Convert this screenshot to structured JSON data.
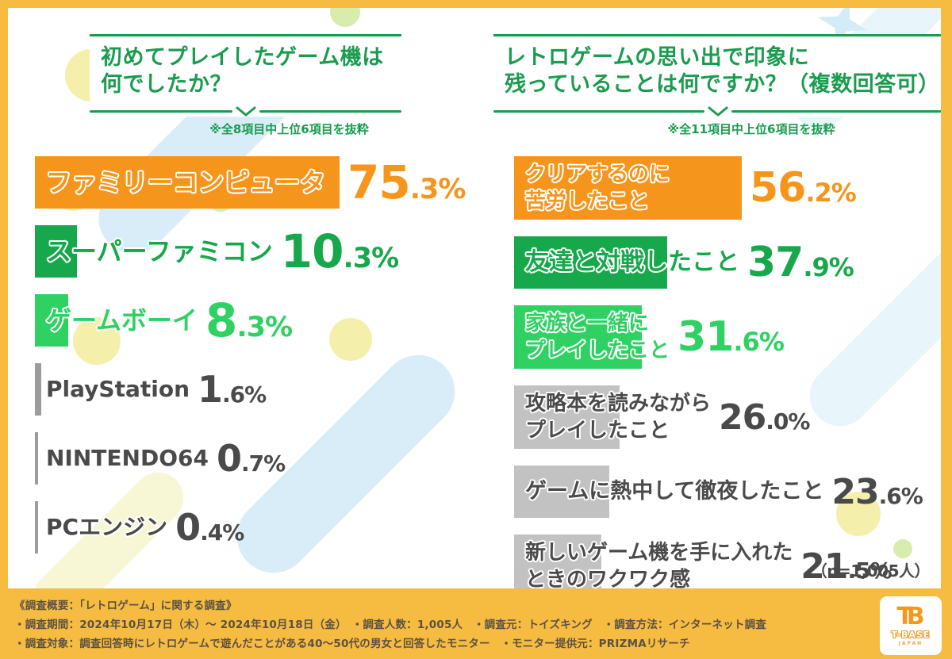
{
  "chart_data": [
    {
      "type": "bar",
      "title_lines": [
        "初めてプレイしたゲーム機は",
        "何でしたか？"
      ],
      "note": "※全8項目中上位6項目を抜粋",
      "unit": "%",
      "categories": [
        "ファミリーコンピュータ",
        "スーパーファミコン",
        "ゲームボーイ",
        "PlayStation",
        "NINTENDO64",
        "PCエンジン"
      ],
      "values": [
        75.3,
        10.3,
        8.3,
        1.6,
        0.7,
        0.4
      ],
      "items": [
        {
          "label_lines": [
            "ファミリーコンピュータ"
          ],
          "value": 75.3,
          "pct_int": "75",
          "pct_frac": ".3%",
          "bar_color": "#F6951C",
          "text_color": "#F6951C",
          "muted": false
        },
        {
          "label_lines": [
            "スーパーファミコン"
          ],
          "value": 10.3,
          "pct_int": "10",
          "pct_frac": ".3%",
          "bar_color": "#17A84B",
          "text_color": "#17A84B",
          "muted": false
        },
        {
          "label_lines": [
            "ゲームボーイ"
          ],
          "value": 8.3,
          "pct_int": "8",
          "pct_frac": ".3%",
          "bar_color": "#2ED162",
          "text_color": "#2ED162",
          "muted": false
        },
        {
          "label_lines": [
            "PlayStation"
          ],
          "value": 1.6,
          "pct_int": "1",
          "pct_frac": ".6%",
          "bar_color": "#9C9C9C",
          "text_color": "#4A4A4A",
          "muted": true
        },
        {
          "label_lines": [
            "NINTENDO64"
          ],
          "value": 0.7,
          "pct_int": "0",
          "pct_frac": ".7%",
          "bar_color": "#9C9C9C",
          "text_color": "#4A4A4A",
          "muted": true
        },
        {
          "label_lines": [
            "PCエンジン"
          ],
          "value": 0.4,
          "pct_int": "0",
          "pct_frac": ".4%",
          "bar_color": "#9C9C9C",
          "text_color": "#4A4A4A",
          "muted": true
        }
      ]
    },
    {
      "type": "bar",
      "title_lines": [
        "レトロゲームの思い出で印象に",
        "残っていることは何ですか？（複数回答可）"
      ],
      "note": "※全11項目中上位6項目を抜粋",
      "unit": "%",
      "categories": [
        "クリアするのに苦労したこと",
        "友達と対戦したこと",
        "家族と一緒にプレイしたこと",
        "攻略本を読みながらプレイしたこと",
        "ゲームに熱中して徹夜したこと",
        "新しいゲーム機を手に入れたときのワクワク感"
      ],
      "values": [
        56.2,
        37.9,
        31.6,
        26.0,
        23.6,
        21.5
      ],
      "items": [
        {
          "label_lines": [
            "クリアするのに",
            "苦労したこと"
          ],
          "value": 56.2,
          "pct_int": "56",
          "pct_frac": ".2%",
          "bar_color": "#F6951C",
          "text_color": "#F6951C",
          "muted": false
        },
        {
          "label_lines": [
            "友達と対戦したこと"
          ],
          "value": 37.9,
          "pct_int": "37",
          "pct_frac": ".9%",
          "bar_color": "#17A84B",
          "text_color": "#17A84B",
          "muted": false
        },
        {
          "label_lines": [
            "家族と一緒に",
            "プレイしたこと"
          ],
          "value": 31.6,
          "pct_int": "31",
          "pct_frac": ".6%",
          "bar_color": "#2ED162",
          "text_color": "#2ED162",
          "muted": false
        },
        {
          "label_lines": [
            "攻略本を読みながら",
            "プレイしたこと"
          ],
          "value": 26.0,
          "pct_int": "26",
          "pct_frac": ".0%",
          "bar_color": "#C2C2C2",
          "text_color": "#4A4A4A",
          "muted": true
        },
        {
          "label_lines": [
            "ゲームに熱中して徹夜したこと"
          ],
          "value": 23.6,
          "pct_int": "23",
          "pct_frac": ".6%",
          "bar_color": "#C2C2C2",
          "text_color": "#4A4A4A",
          "muted": true
        },
        {
          "label_lines": [
            "新しいゲーム機を手に入れた",
            "ときのワクワク感"
          ],
          "value": 21.5,
          "pct_int": "21",
          "pct_frac": ".5%",
          "bar_color": "#C2C2C2",
          "text_color": "#4A4A4A",
          "muted": true
        }
      ]
    }
  ],
  "sample_note": "（n=1,005人）",
  "footer": {
    "line1": "《調査概要：「レトロゲーム」に関する調査》",
    "line2": "・調査期間：2024年10月17日（木）～ 2024年10月18日（金）　・調査人数：1,005人　・調査元：トイズキング　・調査方法：インターネット調査",
    "line3": "・調査対象：調査回答時にレトロゲームで遊んだことがある40～50代の男女と回答したモニター　・モニター提供元：PRIZMAリサーチ"
  },
  "logo": {
    "monogram": "TB",
    "name": "T-BASE",
    "sub": "JAPAN"
  },
  "colors": {
    "accent_orange": "#F6951C",
    "accent_green": "#17A84B",
    "accent_light_green": "#2ED162",
    "muted_bar_left": "#9C9C9C",
    "muted_bar_right": "#C2C2C2",
    "muted_text": "#4A4A4A",
    "title_green": "#1A9C4F",
    "frame_yellow": "#F6BB41",
    "footer_text": "#5B5143"
  }
}
